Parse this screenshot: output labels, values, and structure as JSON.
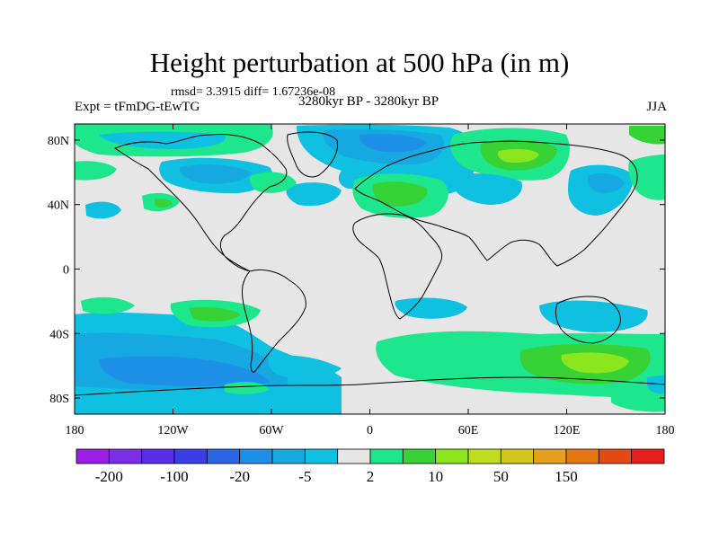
{
  "header": {
    "title": "Height perturbation at 500 hPa (in m)",
    "stats": "rmsd= 3.3915 diff= 1.67236e-08",
    "experiment": "Expt = tFmDG-tEwTG",
    "period": "3280kyr BP - 3280kyr BP",
    "season": "JJA"
  },
  "map": {
    "lon_range": [
      -180,
      180
    ],
    "lat_range": [
      -90,
      90
    ],
    "lat_ticks": [
      {
        "lat": 80,
        "label": "80N"
      },
      {
        "lat": 40,
        "label": "40N"
      },
      {
        "lat": 0,
        "label": "0"
      },
      {
        "lat": -40,
        "label": "40S"
      },
      {
        "lat": -80,
        "label": "80S"
      }
    ],
    "lon_ticks": [
      {
        "lon": -180,
        "label": "180"
      },
      {
        "lon": -120,
        "label": "120W"
      },
      {
        "lon": -60,
        "label": "60W"
      },
      {
        "lon": 0,
        "label": "0"
      },
      {
        "lon": 60,
        "label": "60E"
      },
      {
        "lon": 120,
        "label": "120E"
      },
      {
        "lon": 180,
        "label": "180"
      }
    ]
  },
  "colorbar": {
    "colors": [
      "#9a1ee6",
      "#7a2ee6",
      "#5a2ee6",
      "#3a3ee6",
      "#2a66e6",
      "#1e90e8",
      "#16a8e0",
      "#10c0e0",
      "#e6e6e6",
      "#1ee68c",
      "#36d236",
      "#8ce61e",
      "#bede1e",
      "#d2c81e",
      "#e6a01e",
      "#e67814",
      "#e64a14",
      "#e61e1e"
    ],
    "labels": [
      {
        "index": 1,
        "text": "-200"
      },
      {
        "index": 3,
        "text": "-100"
      },
      {
        "index": 5,
        "text": "-20"
      },
      {
        "index": 7,
        "text": "-5"
      },
      {
        "index": 9,
        "text": "2"
      },
      {
        "index": 11,
        "text": "10"
      },
      {
        "index": 13,
        "text": "50"
      },
      {
        "index": 15,
        "text": "150"
      }
    ]
  },
  "palette": {
    "neutral": "#e6e6e6",
    "cyan": "#10c0e0",
    "sky": "#16a8e0",
    "blue": "#1e90e8",
    "green": "#1ee68c",
    "darkgreen": "#36d236",
    "lime": "#8ce61e"
  }
}
